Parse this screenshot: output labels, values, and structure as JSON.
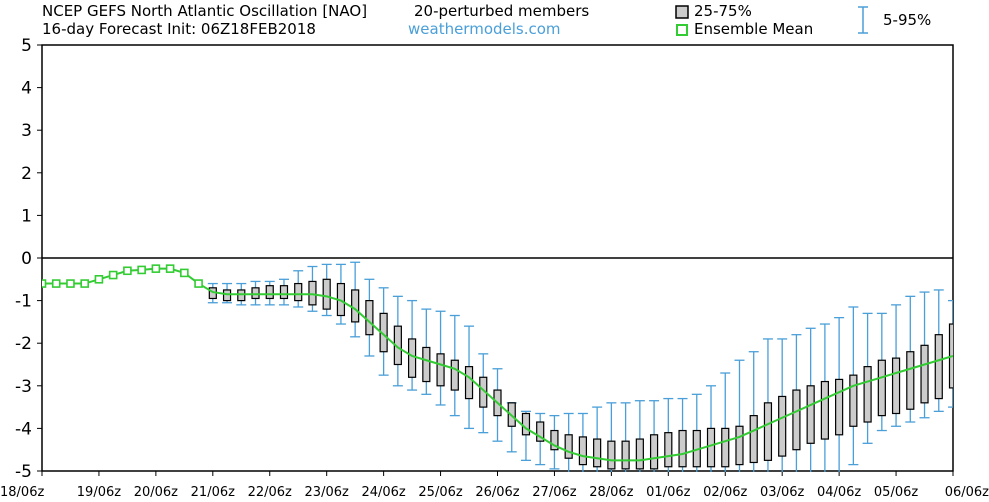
{
  "header": {
    "title_left": "NCEP GEFS North Atlantic Oscillation [NAO]",
    "members": "20-perturbed members",
    "subtitle": "16-day Forecast Init: 06Z18FEB2018",
    "credit": "weathermodels.com"
  },
  "legend": {
    "box_label": "25-75%",
    "mean_label": "Ensemble Mean",
    "whisker_label": "5-95%"
  },
  "colors": {
    "box_fill": "#cccccc",
    "box_stroke": "#000000",
    "mean": "#33cc33",
    "whisker": "#4a9fd8",
    "axis": "#000000",
    "credit": "#4a9fd8"
  },
  "chart_data": {
    "type": "box",
    "ylim": [
      -5,
      5
    ],
    "yticks": [
      5,
      4,
      3,
      2,
      1,
      0,
      -1,
      -2,
      -3,
      -4,
      -5
    ],
    "xticks": [
      "18/06z",
      "19/06z",
      "20/06z",
      "21/06z",
      "22/06z",
      "23/06z",
      "24/06z",
      "25/06z",
      "26/06z",
      "27/06z",
      "28/06z",
      "01/06z",
      "02/06z",
      "03/06z",
      "04/06z",
      "05/06z",
      "06/06z"
    ],
    "interval_hours": 6,
    "steps": 65,
    "mean": [
      -0.6,
      -0.6,
      -0.6,
      -0.6,
      -0.5,
      -0.4,
      -0.3,
      -0.28,
      -0.25,
      -0.25,
      -0.35,
      -0.6,
      -0.8,
      -0.85,
      -0.85,
      -0.85,
      -0.85,
      -0.85,
      -0.85,
      -0.85,
      -0.9,
      -1.0,
      -1.2,
      -1.5,
      -1.8,
      -2.1,
      -2.3,
      -2.4,
      -2.5,
      -2.6,
      -2.8,
      -3.1,
      -3.4,
      -3.7,
      -4.0,
      -4.2,
      -4.4,
      -4.55,
      -4.65,
      -4.7,
      -4.75,
      -4.75,
      -4.75,
      -4.7,
      -4.65,
      -4.6,
      -4.5,
      -4.4,
      -4.3,
      -4.2,
      -4.05,
      -3.9,
      -3.75,
      -3.6,
      -3.45,
      -3.3,
      -3.15,
      -3.0,
      -2.9,
      -2.8,
      -2.7,
      -2.6,
      -2.5,
      -2.4,
      -2.3
    ],
    "q25": [
      null,
      null,
      null,
      null,
      null,
      null,
      null,
      null,
      null,
      null,
      null,
      null,
      -0.95,
      -1.0,
      -1.0,
      -0.95,
      -0.95,
      -0.95,
      -1.0,
      -1.1,
      -1.2,
      -1.35,
      -1.5,
      -1.8,
      -2.2,
      -2.5,
      -2.8,
      -2.9,
      -3.0,
      -3.1,
      -3.3,
      -3.5,
      -3.7,
      -3.95,
      -4.15,
      -4.3,
      -4.5,
      -4.7,
      -4.85,
      -4.9,
      -4.95,
      -4.95,
      -4.95,
      -4.95,
      -4.9,
      -4.9,
      -4.9,
      -4.9,
      -4.9,
      -4.85,
      -4.8,
      -4.75,
      -4.65,
      -4.5,
      -4.35,
      -4.25,
      -4.15,
      -3.95,
      -3.85,
      -3.7,
      -3.65,
      -3.55,
      -3.4,
      -3.3,
      -3.05
    ],
    "q75": [
      null,
      null,
      null,
      null,
      null,
      null,
      null,
      null,
      null,
      null,
      null,
      null,
      -0.7,
      -0.75,
      -0.75,
      -0.7,
      -0.65,
      -0.65,
      -0.6,
      -0.55,
      -0.5,
      -0.6,
      -0.75,
      -1.0,
      -1.3,
      -1.6,
      -1.9,
      -2.1,
      -2.25,
      -2.4,
      -2.55,
      -2.8,
      -3.1,
      -3.4,
      -3.65,
      -3.85,
      -4.05,
      -4.15,
      -4.2,
      -4.25,
      -4.3,
      -4.3,
      -4.25,
      -4.15,
      -4.1,
      -4.05,
      -4.05,
      -4.0,
      -4.0,
      -3.95,
      -3.7,
      -3.4,
      -3.25,
      -3.1,
      -3.0,
      -2.9,
      -2.85,
      -2.75,
      -2.55,
      -2.4,
      -2.35,
      -2.2,
      -2.05,
      -1.8,
      -1.55
    ],
    "p05": [
      null,
      null,
      null,
      null,
      null,
      null,
      null,
      null,
      null,
      null,
      null,
      null,
      -1.05,
      -1.05,
      -1.1,
      -1.1,
      -1.1,
      -1.1,
      -1.15,
      -1.25,
      -1.35,
      -1.55,
      -1.85,
      -2.3,
      -2.75,
      -3.0,
      -3.1,
      -3.2,
      -3.45,
      -3.7,
      -4.0,
      -4.1,
      -4.3,
      -4.55,
      -4.75,
      -4.85,
      -4.95,
      -5.05,
      -5.1,
      -5.1,
      -5.1,
      -5.1,
      -5.1,
      -5.1,
      -5.1,
      -5.1,
      -5.1,
      -5.1,
      -5.1,
      -5.1,
      -5.1,
      -5.1,
      -5.1,
      -5.1,
      -5.1,
      -5.1,
      -5.1,
      -4.85,
      -4.35,
      -4.05,
      -3.95,
      -3.85,
      -3.75,
      -3.6,
      -3.5
    ],
    "p95": [
      null,
      null,
      null,
      null,
      null,
      null,
      null,
      null,
      null,
      null,
      null,
      null,
      -0.6,
      -0.6,
      -0.6,
      -0.55,
      -0.55,
      -0.5,
      -0.3,
      -0.2,
      -0.15,
      -0.15,
      -0.1,
      -0.5,
      -0.7,
      -0.9,
      -1.0,
      -1.2,
      -1.25,
      -1.35,
      -1.6,
      -2.25,
      -2.6,
      -3.4,
      -3.6,
      -3.65,
      -3.7,
      -3.65,
      -3.65,
      -3.5,
      -3.4,
      -3.4,
      -3.35,
      -3.35,
      -3.3,
      -3.3,
      -3.2,
      -3.0,
      -2.7,
      -2.4,
      -2.2,
      -1.9,
      -1.9,
      -1.8,
      -1.65,
      -1.55,
      -1.4,
      -1.15,
      -1.3,
      -1.3,
      -1.1,
      -0.9,
      -0.8,
      -0.75,
      -1.0
    ]
  }
}
